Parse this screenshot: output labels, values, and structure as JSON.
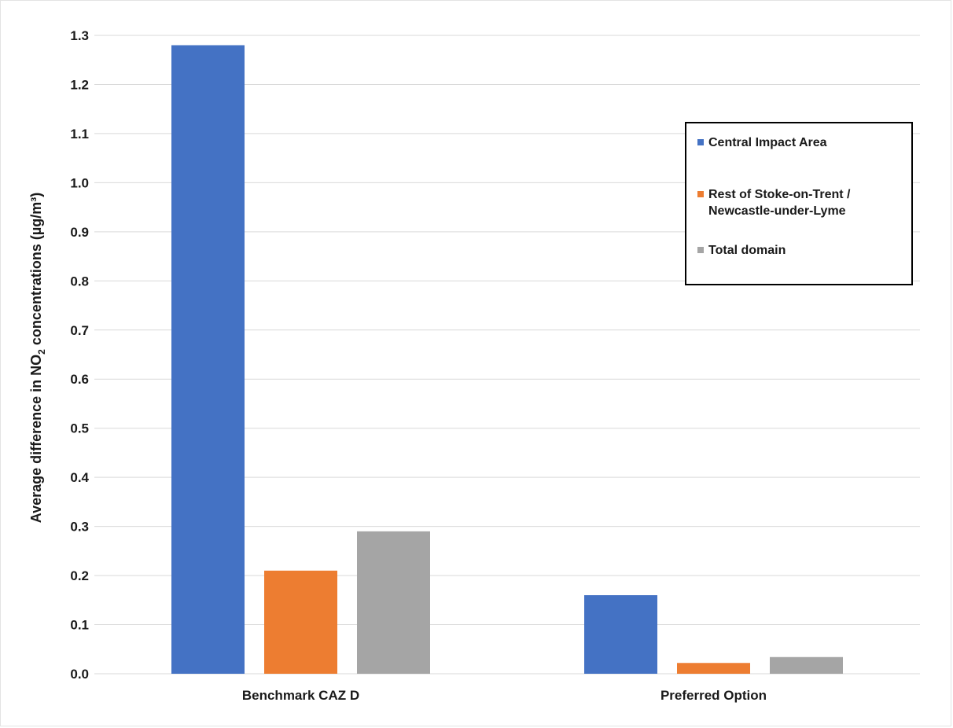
{
  "chart_data": {
    "type": "bar",
    "categories": [
      "Benchmark CAZ D",
      "Preferred Option"
    ],
    "series": [
      {
        "name": "Central Impact Area",
        "color": "#4472C4",
        "values": [
          1.28,
          0.16
        ]
      },
      {
        "name": "Rest of Stoke-on-Trent / Newcastle-under-Lyme",
        "color": "#ED7D31",
        "values": [
          0.21,
          0.022
        ]
      },
      {
        "name": "Total domain",
        "color": "#A5A5A5",
        "values": [
          0.29,
          0.034
        ]
      }
    ],
    "ylim": [
      0,
      1.3
    ],
    "yticks": [
      "0.0",
      "0.1",
      "0.2",
      "0.3",
      "0.4",
      "0.5",
      "0.6",
      "0.7",
      "0.8",
      "0.9",
      "1.0",
      "1.1",
      "1.2",
      "1.3"
    ],
    "ylabel": {
      "before": "Average difference in NO",
      "sub": "2",
      "after": " concentrations (µg/m³)"
    },
    "grid": true,
    "gridline_color": "#d9d9d9",
    "legend_position": "right",
    "legend": {
      "items": [
        {
          "label": "Central Impact Area",
          "color": "#4472C4"
        },
        {
          "label": "Rest of Stoke-on-Trent /\nNewcastle-under-Lyme",
          "color": "#ED7D31"
        },
        {
          "label": "Total domain",
          "color": "#A5A5A5"
        }
      ]
    }
  }
}
